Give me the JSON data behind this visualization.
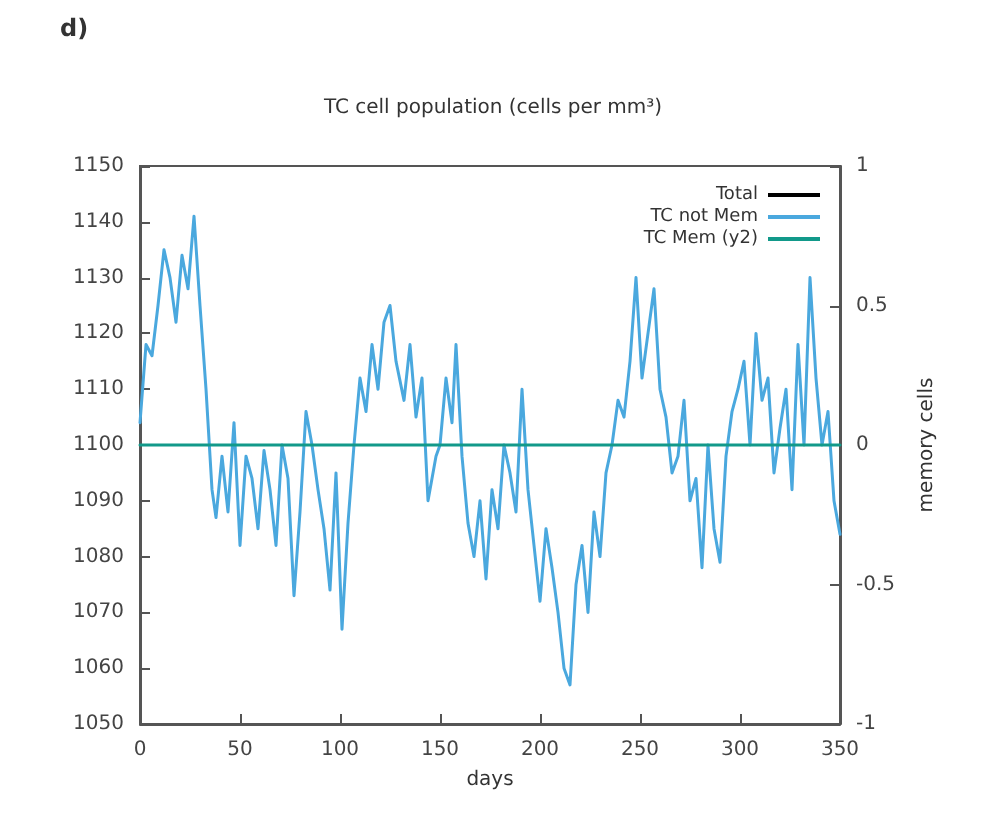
{
  "chart_data": {
    "type": "line",
    "title": "TC cell population (cells per mm³)",
    "xlabel": "days",
    "y2label": "memory cells",
    "annotations": [
      "d)"
    ],
    "xlim": [
      0,
      350
    ],
    "xticks": [
      0,
      50,
      100,
      150,
      200,
      250,
      300,
      350
    ],
    "ylim": [
      1050,
      1150
    ],
    "yticks": [
      1050,
      1060,
      1070,
      1080,
      1090,
      1100,
      1110,
      1120,
      1130,
      1140,
      1150
    ],
    "y2lim": [
      -1,
      1
    ],
    "y2ticks": [
      -1,
      -0.5,
      0,
      0.5,
      1
    ],
    "legend": "top right",
    "marker": "none",
    "line_style": "solid",
    "grid": false,
    "series": [
      {
        "name": "Total",
        "color": "#000000"
      },
      {
        "name": "TC not Mem",
        "color": "#4aa8de",
        "x": [
          0,
          3,
          6,
          9,
          12,
          15,
          18,
          21,
          24,
          27,
          30,
          33,
          36,
          38,
          41,
          44,
          47,
          50,
          53,
          56,
          59,
          62,
          65,
          68,
          71,
          74,
          77,
          80,
          83,
          86,
          89,
          92,
          95,
          98,
          101,
          104,
          107,
          110,
          113,
          116,
          119,
          122,
          125,
          128,
          132,
          135,
          138,
          141,
          144,
          148,
          150,
          153,
          156,
          158,
          161,
          164,
          167,
          170,
          173,
          176,
          179,
          182,
          185,
          188,
          191,
          194,
          197,
          200,
          203,
          206,
          209,
          212,
          215,
          218,
          221,
          224,
          227,
          230,
          233,
          236,
          239,
          242,
          245,
          248,
          251,
          254,
          257,
          260,
          263,
          266,
          269,
          272,
          275,
          278,
          281,
          284,
          287,
          290,
          293,
          296,
          299,
          302,
          305,
          308,
          311,
          314,
          317,
          320,
          323,
          326,
          329,
          332,
          335,
          338,
          341,
          344,
          347,
          350
        ],
        "values": [
          1104,
          1118,
          1116,
          1125,
          1135,
          1130,
          1122,
          1134,
          1128,
          1141,
          1125,
          1110,
          1092,
          1087,
          1098,
          1088,
          1104,
          1082,
          1098,
          1094,
          1085,
          1099,
          1092,
          1082,
          1100,
          1094,
          1073,
          1088,
          1106,
          1100,
          1092,
          1085,
          1074,
          1095,
          1067,
          1086,
          1100,
          1112,
          1106,
          1118,
          1110,
          1122,
          1125,
          1115,
          1108,
          1118,
          1105,
          1112,
          1090,
          1098,
          1100,
          1112,
          1104,
          1118,
          1098,
          1086,
          1080,
          1090,
          1076,
          1092,
          1085,
          1100,
          1095,
          1088,
          1110,
          1092,
          1082,
          1072,
          1085,
          1078,
          1070,
          1060,
          1057,
          1075,
          1082,
          1070,
          1088,
          1080,
          1095,
          1100,
          1108,
          1105,
          1115,
          1130,
          1112,
          1120,
          1128,
          1110,
          1105,
          1095,
          1098,
          1108,
          1090,
          1094,
          1078,
          1100,
          1085,
          1079,
          1098,
          1106,
          1110,
          1115,
          1100,
          1120,
          1108,
          1112,
          1095,
          1103,
          1110,
          1092,
          1118,
          1100,
          1130,
          1112,
          1100,
          1106,
          1090,
          1084
        ]
      },
      {
        "name": "TC Mem (y2)",
        "color": "#12998a",
        "axis": "y2",
        "x": [
          0,
          350
        ],
        "values": [
          0,
          0
        ]
      }
    ]
  }
}
